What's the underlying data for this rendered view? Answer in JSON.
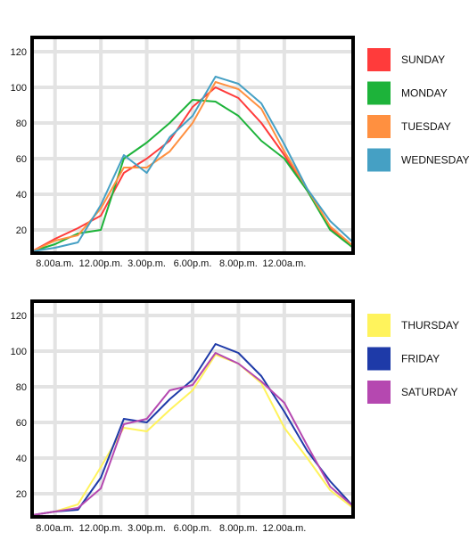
{
  "chart_data": [
    {
      "type": "line",
      "x": [
        0,
        1,
        2,
        3,
        4,
        5,
        6,
        7,
        8,
        9,
        10,
        11,
        12,
        13,
        14
      ],
      "ylim": [
        7,
        128
      ],
      "yticks": [
        "20",
        "40",
        "60",
        "80",
        "100",
        "120"
      ],
      "xtick_labels": [
        "8.00a.m.",
        "12.00p.m.",
        "3.00p.m.",
        "6.00p.m.",
        "8.00p.m.",
        "12.00a.m."
      ],
      "xtick_positions": [
        1,
        3,
        5,
        7,
        9,
        11
      ],
      "grid": true,
      "legend_position": "right",
      "series": [
        {
          "name": "SUNDAY",
          "color": "#ff3b3b",
          "values": [
            8,
            15,
            21,
            28,
            52,
            60,
            70,
            89,
            100,
            94,
            80,
            62,
            42,
            21,
            10
          ]
        },
        {
          "name": "MONDAY",
          "color": "#1db33a",
          "values": [
            8,
            12,
            18,
            20,
            60,
            69,
            80,
            93,
            92,
            84,
            70,
            60,
            42,
            20,
            10
          ]
        },
        {
          "name": "TUESDAY",
          "color": "#ff9040",
          "values": [
            8,
            14,
            17,
            32,
            55,
            55,
            64,
            80,
            103,
            99,
            88,
            64,
            43,
            22,
            11
          ]
        },
        {
          "name": "WEDNESDAY",
          "color": "#45a0c4",
          "values": [
            8,
            10,
            13,
            34,
            62,
            52,
            72,
            84,
            106,
            102,
            91,
            68,
            43,
            25,
            13
          ]
        }
      ]
    },
    {
      "type": "line",
      "x": [
        0,
        1,
        2,
        3,
        4,
        5,
        6,
        7,
        8,
        9,
        10,
        11,
        12,
        13,
        14
      ],
      "ylim": [
        7,
        128
      ],
      "yticks": [
        "20",
        "40",
        "60",
        "80",
        "100",
        "120"
      ],
      "xtick_labels": [
        "8.00a.m.",
        "12.00p.m.",
        "3.00p.m.",
        "6.00p.m.",
        "8.00p.m.",
        "12.00a.m."
      ],
      "xtick_positions": [
        1,
        3,
        5,
        7,
        9,
        11
      ],
      "grid": true,
      "legend_position": "right",
      "series": [
        {
          "name": "THURSDAY",
          "color": "#fff35c",
          "values": [
            8,
            10,
            14,
            35,
            57,
            55,
            67,
            78,
            98,
            93,
            82,
            57,
            40,
            22,
            12
          ]
        },
        {
          "name": "FRIDAY",
          "color": "#1e3aa8",
          "values": [
            8,
            10,
            11,
            29,
            62,
            60,
            73,
            84,
            104,
            99,
            86,
            66,
            44,
            27,
            13
          ]
        },
        {
          "name": "SATURDAY",
          "color": "#b548b0",
          "values": [
            8,
            10,
            12,
            23,
            59,
            62,
            78,
            81,
            99,
            93,
            83,
            71,
            47,
            24,
            13
          ]
        }
      ]
    }
  ]
}
